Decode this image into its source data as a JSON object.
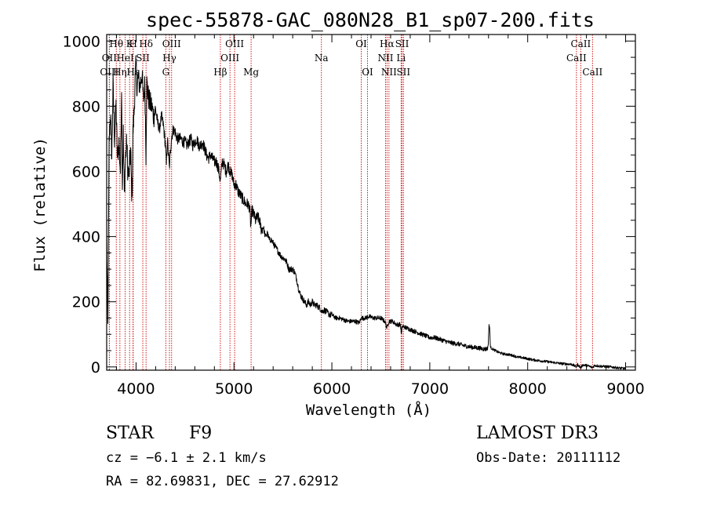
{
  "chart_data": {
    "type": "line",
    "title": "spec-55878-GAC_080N28_B1_sp07-200.fits",
    "xlabel": "Wavelength (Å)",
    "ylabel": "Flux (relative)",
    "xlim": [
      3700,
      9100
    ],
    "ylim": [
      -10,
      1020
    ],
    "x_ticks": [
      4000,
      5000,
      6000,
      7000,
      8000,
      9000
    ],
    "x_tick_labels": [
      "4000",
      "5000",
      "6000",
      "7000",
      "8000",
      "9000"
    ],
    "y_ticks": [
      0,
      200,
      400,
      600,
      800,
      1000
    ],
    "y_tick_labels": [
      "0",
      "200",
      "400",
      "600",
      "800",
      "1000"
    ],
    "series": [
      {
        "name": "flux",
        "points": [
          [
            3700,
            390
          ],
          [
            3712,
            120
          ],
          [
            3725,
            690
          ],
          [
            3740,
            780
          ],
          [
            3752,
            640
          ],
          [
            3765,
            870
          ],
          [
            3780,
            700
          ],
          [
            3795,
            800
          ],
          [
            3810,
            640
          ],
          [
            3825,
            690
          ],
          [
            3840,
            600
          ],
          [
            3852,
            870
          ],
          [
            3860,
            560
          ],
          [
            3870,
            720
          ],
          [
            3880,
            530
          ],
          [
            3893,
            640
          ],
          [
            3905,
            690
          ],
          [
            3915,
            610
          ],
          [
            3928,
            580
          ],
          [
            3933,
            620
          ],
          [
            3945,
            660
          ],
          [
            3955,
            540
          ],
          [
            3962,
            560
          ],
          [
            3968,
            720
          ],
          [
            3980,
            780
          ],
          [
            3990,
            880
          ],
          [
            4000,
            930
          ],
          [
            4010,
            850
          ],
          [
            4020,
            890
          ],
          [
            4040,
            860
          ],
          [
            4060,
            900
          ],
          [
            4075,
            820
          ],
          [
            4090,
            870
          ],
          [
            4101,
            650
          ],
          [
            4110,
            870
          ],
          [
            4125,
            830
          ],
          [
            4140,
            810
          ],
          [
            4160,
            800
          ],
          [
            4180,
            770
          ],
          [
            4200,
            790
          ],
          [
            4220,
            750
          ],
          [
            4240,
            730
          ],
          [
            4260,
            770
          ],
          [
            4280,
            740
          ],
          [
            4300,
            680
          ],
          [
            4310,
            620
          ],
          [
            4320,
            700
          ],
          [
            4340,
            610
          ],
          [
            4360,
            700
          ],
          [
            4380,
            730
          ],
          [
            4400,
            720
          ],
          [
            4420,
            700
          ],
          [
            4440,
            700
          ],
          [
            4460,
            700
          ],
          [
            4480,
            690
          ],
          [
            4500,
            690
          ],
          [
            4520,
            680
          ],
          [
            4540,
            690
          ],
          [
            4560,
            700
          ],
          [
            4580,
            680
          ],
          [
            4600,
            690
          ],
          [
            4620,
            700
          ],
          [
            4640,
            680
          ],
          [
            4660,
            680
          ],
          [
            4680,
            690
          ],
          [
            4700,
            670
          ],
          [
            4720,
            650
          ],
          [
            4740,
            640
          ],
          [
            4760,
            650
          ],
          [
            4780,
            640
          ],
          [
            4800,
            630
          ],
          [
            4820,
            630
          ],
          [
            4840,
            610
          ],
          [
            4861,
            570
          ],
          [
            4880,
            630
          ],
          [
            4900,
            620
          ],
          [
            4920,
            600
          ],
          [
            4940,
            620
          ],
          [
            4960,
            600
          ],
          [
            4980,
            590
          ],
          [
            5000,
            560
          ],
          [
            5020,
            560
          ],
          [
            5040,
            540
          ],
          [
            5060,
            530
          ],
          [
            5080,
            520
          ],
          [
            5100,
            510
          ],
          [
            5120,
            500
          ],
          [
            5140,
            500
          ],
          [
            5160,
            490
          ],
          [
            5172,
            430
          ],
          [
            5185,
            480
          ],
          [
            5200,
            470
          ],
          [
            5220,
            450
          ],
          [
            5240,
            460
          ],
          [
            5260,
            450
          ],
          [
            5280,
            420
          ],
          [
            5300,
            430
          ],
          [
            5320,
            400
          ],
          [
            5340,
            410
          ],
          [
            5360,
            390
          ],
          [
            5380,
            390
          ],
          [
            5400,
            380
          ],
          [
            5420,
            370
          ],
          [
            5440,
            360
          ],
          [
            5460,
            350
          ],
          [
            5480,
            340
          ],
          [
            5500,
            335
          ],
          [
            5520,
            330
          ],
          [
            5540,
            320
          ],
          [
            5560,
            300
          ],
          [
            5580,
            300
          ],
          [
            5600,
            300
          ],
          [
            5620,
            290
          ],
          [
            5640,
            270
          ],
          [
            5660,
            240
          ],
          [
            5680,
            220
          ],
          [
            5700,
            210
          ],
          [
            5720,
            200
          ],
          [
            5740,
            190
          ],
          [
            5760,
            200
          ],
          [
            5780,
            190
          ],
          [
            5800,
            200
          ],
          [
            5820,
            190
          ],
          [
            5840,
            190
          ],
          [
            5860,
            185
          ],
          [
            5880,
            180
          ],
          [
            5900,
            170
          ],
          [
            5920,
            175
          ],
          [
            5940,
            170
          ],
          [
            5960,
            165
          ],
          [
            5980,
            160
          ],
          [
            6000,
            160
          ],
          [
            6040,
            150
          ],
          [
            6080,
            150
          ],
          [
            6120,
            145
          ],
          [
            6160,
            140
          ],
          [
            6200,
            140
          ],
          [
            6240,
            140
          ],
          [
            6280,
            135
          ],
          [
            6300,
            150
          ],
          [
            6340,
            150
          ],
          [
            6380,
            155
          ],
          [
            6420,
            150
          ],
          [
            6460,
            150
          ],
          [
            6500,
            150
          ],
          [
            6540,
            140
          ],
          [
            6563,
            120
          ],
          [
            6580,
            140
          ],
          [
            6620,
            140
          ],
          [
            6660,
            130
          ],
          [
            6700,
            130
          ],
          [
            6710,
            100
          ],
          [
            6720,
            125
          ],
          [
            6760,
            120
          ],
          [
            6800,
            115
          ],
          [
            6840,
            110
          ],
          [
            6880,
            105
          ],
          [
            6920,
            100
          ],
          [
            6960,
            95
          ],
          [
            7000,
            90
          ],
          [
            7050,
            90
          ],
          [
            7100,
            85
          ],
          [
            7150,
            80
          ],
          [
            7200,
            75
          ],
          [
            7250,
            72
          ],
          [
            7300,
            70
          ],
          [
            7350,
            65
          ],
          [
            7400,
            62
          ],
          [
            7450,
            60
          ],
          [
            7500,
            58
          ],
          [
            7550,
            55
          ],
          [
            7580,
            55
          ],
          [
            7595,
            60
          ],
          [
            7605,
            130
          ],
          [
            7612,
            115
          ],
          [
            7620,
            60
          ],
          [
            7640,
            55
          ],
          [
            7700,
            45
          ],
          [
            7750,
            40
          ],
          [
            7800,
            38
          ],
          [
            7850,
            35
          ],
          [
            7900,
            30
          ],
          [
            7950,
            28
          ],
          [
            8000,
            25
          ],
          [
            8050,
            22
          ],
          [
            8100,
            20
          ],
          [
            8150,
            18
          ],
          [
            8200,
            16
          ],
          [
            8250,
            14
          ],
          [
            8300,
            12
          ],
          [
            8350,
            10
          ],
          [
            8400,
            9
          ],
          [
            8450,
            8
          ],
          [
            8498,
            0
          ],
          [
            8510,
            8
          ],
          [
            8542,
            -3
          ],
          [
            8560,
            6
          ],
          [
            8600,
            5
          ],
          [
            8662,
            -2
          ],
          [
            8680,
            4
          ],
          [
            8700,
            4
          ],
          [
            8750,
            2
          ],
          [
            8800,
            1
          ],
          [
            8850,
            0
          ],
          [
            8900,
            -2
          ],
          [
            8950,
            -4
          ],
          [
            9000,
            -5
          ]
        ]
      }
    ],
    "spectral_lines": [
      {
        "label": "Hθ",
        "x": 3798,
        "row": 0
      },
      {
        "label": "OII",
        "x": 3727,
        "row": 1
      },
      {
        "label": "OIII",
        "x": 3727,
        "row": 2
      },
      {
        "label": "K",
        "x": 3934,
        "row": 0
      },
      {
        "label": "H",
        "x": 3970,
        "row": 0
      },
      {
        "label": "HeI",
        "x": 3889,
        "row": 1
      },
      {
        "label": "SII",
        "x": 4069,
        "row": 1
      },
      {
        "label": "Hη",
        "x": 3835,
        "row": 2
      },
      {
        "label": "Hε",
        "x": 3970,
        "row": 2
      },
      {
        "label": "Hδ",
        "x": 4102,
        "row": 0
      },
      {
        "label": "OIII",
        "x": 4363,
        "row": 0
      },
      {
        "label": "Hγ",
        "x": 4341,
        "row": 1
      },
      {
        "label": "G",
        "x": 4304,
        "row": 2
      },
      {
        "label": "OIII",
        "x": 5007,
        "row": 0
      },
      {
        "label": "OIII",
        "x": 4959,
        "row": 1
      },
      {
        "label": "Hβ",
        "x": 4861,
        "row": 2
      },
      {
        "label": "Mg",
        "x": 5175,
        "row": 2
      },
      {
        "label": "Na",
        "x": 5893,
        "row": 1
      },
      {
        "label": "OI",
        "x": 6300,
        "row": 0
      },
      {
        "label": "OI",
        "x": 6364,
        "row": 2
      },
      {
        "label": "Hα",
        "x": 6563,
        "row": 0
      },
      {
        "label": "SII",
        "x": 6717,
        "row": 0
      },
      {
        "label": "NII",
        "x": 6548,
        "row": 1
      },
      {
        "label": "Li",
        "x": 6707,
        "row": 1
      },
      {
        "label": "NII",
        "x": 6583,
        "row": 2
      },
      {
        "label": "SII",
        "x": 6731,
        "row": 2
      },
      {
        "label": "CaII",
        "x": 8542,
        "row": 0
      },
      {
        "label": "CaII",
        "x": 8498,
        "row": 1
      },
      {
        "label": "CaII",
        "x": 8662,
        "row": 2
      }
    ]
  },
  "footer": {
    "class_label": "STAR",
    "subclass": "F9",
    "survey": "LAMOST DR3",
    "cz": "cz = −6.1 ± 2.1 km/s",
    "obs_date": "Obs-Date: 20111112",
    "coords": "RA =  82.69831, DEC =  27.62912"
  },
  "colors": {
    "line_marker": "#cc0000",
    "spectrum": "#000000"
  }
}
